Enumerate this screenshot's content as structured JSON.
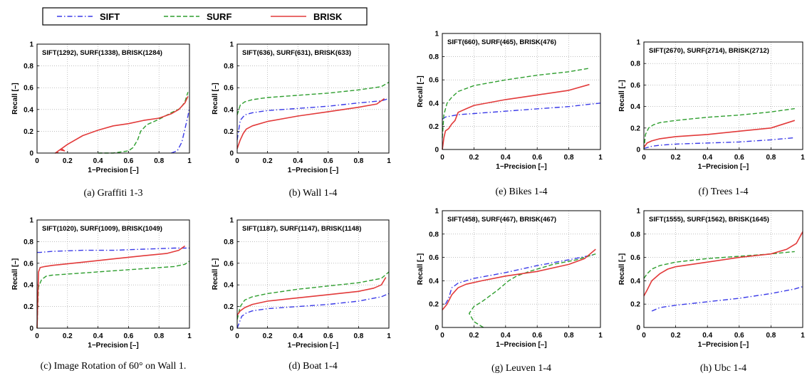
{
  "legend": [
    {
      "name": "SIFT",
      "color": "#3a3ae8",
      "dash": "dashdot"
    },
    {
      "name": "SURF",
      "color": "#2e9e2e",
      "dash": "dashed"
    },
    {
      "name": "BRISK",
      "color": "#e23a3a",
      "dash": "solid"
    }
  ],
  "chart_data": [
    {
      "type": "line",
      "caption": "(a) Graffiti 1-3",
      "annotation": "SIFT(1292), SURF(1338), BRISK(1284)",
      "xlabel": "1−Precision [–]",
      "ylabel": "Recall [–]",
      "xlim": [
        0,
        1
      ],
      "ylim": [
        0,
        1
      ],
      "grid": true,
      "xticks": [
        "0",
        "0.2",
        "0.4",
        "0.6",
        "0.8",
        "1"
      ],
      "yticks": [
        "0",
        "0.2",
        "0.4",
        "0.6",
        "0.8",
        "1"
      ],
      "series": [
        {
          "name": "SIFT",
          "x": [
            0.88,
            0.92,
            0.95,
            0.97,
            0.99,
            1.0
          ],
          "y": [
            0.0,
            0.02,
            0.1,
            0.22,
            0.34,
            0.42
          ]
        },
        {
          "name": "SURF",
          "x": [
            0.4,
            0.5,
            0.6,
            0.63,
            0.66,
            0.68,
            0.72,
            0.8,
            0.88,
            0.94,
            0.97,
            0.99
          ],
          "y": [
            0.0,
            0.0,
            0.02,
            0.05,
            0.12,
            0.2,
            0.26,
            0.31,
            0.37,
            0.41,
            0.47,
            0.56
          ]
        },
        {
          "name": "BRISK",
          "x": [
            0.14,
            0.13,
            0.16,
            0.18,
            0.15,
            0.12,
            0.2,
            0.3,
            0.4,
            0.5,
            0.6,
            0.7,
            0.8,
            0.88,
            0.93,
            0.97,
            0.99
          ],
          "y": [
            0.0,
            0.01,
            0.04,
            0.02,
            0.03,
            0.0,
            0.08,
            0.16,
            0.21,
            0.25,
            0.27,
            0.3,
            0.32,
            0.36,
            0.4,
            0.46,
            0.52
          ]
        }
      ]
    },
    {
      "type": "line",
      "caption": "(b) Wall 1-4",
      "annotation": "SIFT(636), SURF(631), BRISK(633)",
      "xlabel": "1−Precision [–]",
      "ylabel": "Recall [–]",
      "xlim": [
        0,
        1
      ],
      "ylim": [
        0,
        1
      ],
      "grid": true,
      "xticks": [
        "0",
        "0.2",
        "0.4",
        "0.6",
        "0.8",
        "1"
      ],
      "yticks": [
        "0",
        "0.2",
        "0.4",
        "0.6",
        "0.8",
        "1"
      ],
      "series": [
        {
          "name": "SIFT",
          "x": [
            0.0,
            0.02,
            0.05,
            0.1,
            0.2,
            0.4,
            0.6,
            0.8,
            0.95,
            1.0
          ],
          "y": [
            0.12,
            0.3,
            0.35,
            0.37,
            0.39,
            0.41,
            0.43,
            0.46,
            0.48,
            0.5
          ]
        },
        {
          "name": "SURF",
          "x": [
            0.0,
            0.02,
            0.05,
            0.1,
            0.2,
            0.4,
            0.6,
            0.8,
            0.95,
            1.0
          ],
          "y": [
            0.35,
            0.44,
            0.47,
            0.49,
            0.51,
            0.53,
            0.55,
            0.58,
            0.61,
            0.65
          ]
        },
        {
          "name": "BRISK",
          "x": [
            0.0,
            0.01,
            0.02,
            0.04,
            0.06,
            0.1,
            0.2,
            0.4,
            0.6,
            0.8,
            0.92,
            0.97
          ],
          "y": [
            0.04,
            0.08,
            0.12,
            0.18,
            0.22,
            0.25,
            0.29,
            0.34,
            0.38,
            0.42,
            0.45,
            0.5
          ]
        }
      ]
    },
    {
      "type": "line",
      "caption": "(c) Image Rotation of 60° on Wall 1.",
      "annotation": "SIFT(1020), SURF(1009), BRISK(1049)",
      "xlabel": "1−Precision [–]",
      "ylabel": "Recall [–]",
      "xlim": [
        0,
        1
      ],
      "ylim": [
        0,
        1
      ],
      "grid": true,
      "xticks": [
        "0",
        "0.2",
        "0.4",
        "0.6",
        "0.8",
        "1"
      ],
      "yticks": [
        "0",
        "0.2",
        "0.4",
        "0.6",
        "0.8",
        "1"
      ],
      "series": [
        {
          "name": "SIFT",
          "x": [
            0.0,
            0.02,
            0.1,
            0.3,
            0.5,
            0.7,
            0.9,
            0.95,
            1.0
          ],
          "y": [
            0.7,
            0.7,
            0.71,
            0.72,
            0.72,
            0.73,
            0.74,
            0.74,
            0.74
          ]
        },
        {
          "name": "SURF",
          "x": [
            0.0,
            0.01,
            0.03,
            0.06,
            0.1,
            0.3,
            0.5,
            0.7,
            0.9,
            0.97,
            1.0
          ],
          "y": [
            0.0,
            0.38,
            0.45,
            0.48,
            0.49,
            0.51,
            0.53,
            0.55,
            0.57,
            0.59,
            0.62
          ]
        },
        {
          "name": "BRISK",
          "x": [
            0.0,
            0.01,
            0.02,
            0.05,
            0.1,
            0.3,
            0.5,
            0.7,
            0.85,
            0.93,
            0.97
          ],
          "y": [
            0.0,
            0.52,
            0.56,
            0.57,
            0.58,
            0.61,
            0.64,
            0.67,
            0.69,
            0.72,
            0.76
          ]
        }
      ]
    },
    {
      "type": "line",
      "caption": "(d) Boat 1-4",
      "annotation": "SIFT(1187), SURF(1147), BRISK(1148)",
      "xlabel": "1−Precision [–]",
      "ylabel": "Recall [–]",
      "xlim": [
        0,
        1
      ],
      "ylim": [
        0,
        1
      ],
      "grid": true,
      "xticks": [
        "0",
        "0.2",
        "0.4",
        "0.6",
        "0.8",
        "1"
      ],
      "yticks": [
        "0",
        "0.2",
        "0.4",
        "0.6",
        "0.8",
        "1"
      ],
      "series": [
        {
          "name": "SIFT",
          "x": [
            0.0,
            0.03,
            0.06,
            0.1,
            0.2,
            0.4,
            0.6,
            0.8,
            0.95,
            1.0
          ],
          "y": [
            0.0,
            0.11,
            0.14,
            0.16,
            0.18,
            0.2,
            0.22,
            0.25,
            0.29,
            0.32
          ]
        },
        {
          "name": "SURF",
          "x": [
            0.0,
            0.02,
            0.05,
            0.1,
            0.2,
            0.4,
            0.6,
            0.8,
            0.95,
            1.0
          ],
          "y": [
            0.08,
            0.2,
            0.26,
            0.29,
            0.32,
            0.36,
            0.39,
            0.42,
            0.46,
            0.52
          ]
        },
        {
          "name": "BRISK",
          "x": [
            0.0,
            0.02,
            0.05,
            0.1,
            0.2,
            0.4,
            0.6,
            0.8,
            0.9,
            0.95,
            0.98
          ],
          "y": [
            0.12,
            0.16,
            0.19,
            0.22,
            0.25,
            0.28,
            0.31,
            0.34,
            0.37,
            0.4,
            0.47
          ]
        }
      ]
    },
    {
      "type": "line",
      "caption": "(e) Bikes 1-4",
      "annotation": "SIFT(660), SURF(465), BRISK(476)",
      "xlabel": "1−Precision [–]",
      "ylabel": "Recall [–]",
      "xlim": [
        0,
        1
      ],
      "ylim": [
        0,
        1
      ],
      "grid": true,
      "xticks": [
        "0",
        "0.2",
        "0.4",
        "0.6",
        "0.8",
        "1"
      ],
      "yticks": [
        "0",
        "0.2",
        "0.4",
        "0.6",
        "0.8",
        "1"
      ],
      "series": [
        {
          "name": "SIFT",
          "x": [
            0.0,
            0.02,
            0.1,
            0.2,
            0.4,
            0.6,
            0.8,
            1.0
          ],
          "y": [
            0.26,
            0.28,
            0.3,
            0.31,
            0.33,
            0.35,
            0.37,
            0.4
          ]
        },
        {
          "name": "SURF",
          "x": [
            0.0,
            0.01,
            0.03,
            0.06,
            0.1,
            0.2,
            0.4,
            0.6,
            0.8,
            0.93
          ],
          "y": [
            0.1,
            0.3,
            0.4,
            0.45,
            0.5,
            0.55,
            0.6,
            0.64,
            0.67,
            0.7
          ]
        },
        {
          "name": "BRISK",
          "x": [
            0.0,
            0.01,
            0.02,
            0.04,
            0.06,
            0.08,
            0.1,
            0.15,
            0.2,
            0.4,
            0.6,
            0.8,
            0.93
          ],
          "y": [
            0.0,
            0.1,
            0.16,
            0.18,
            0.22,
            0.25,
            0.32,
            0.35,
            0.38,
            0.43,
            0.47,
            0.51,
            0.56
          ]
        }
      ]
    },
    {
      "type": "line",
      "caption": "(f) Trees 1-4",
      "annotation": "SIFT(2670), SURF(2714), BRISK(2712)",
      "xlabel": "1−Precision [–]",
      "ylabel": "Recall [–]",
      "xlim": [
        0,
        1
      ],
      "ylim": [
        0,
        1
      ],
      "grid": true,
      "xticks": [
        "0",
        "0.2",
        "0.4",
        "0.6",
        "0.8",
        "1"
      ],
      "yticks": [
        "0",
        "0.2",
        "0.4",
        "0.6",
        "0.8",
        "1"
      ],
      "series": [
        {
          "name": "SIFT",
          "x": [
            0.0,
            0.05,
            0.1,
            0.2,
            0.4,
            0.6,
            0.8,
            0.95
          ],
          "y": [
            0.01,
            0.03,
            0.04,
            0.05,
            0.06,
            0.07,
            0.09,
            0.11
          ]
        },
        {
          "name": "SURF",
          "x": [
            0.0,
            0.01,
            0.03,
            0.06,
            0.1,
            0.2,
            0.4,
            0.6,
            0.8,
            0.95
          ],
          "y": [
            0.0,
            0.14,
            0.2,
            0.23,
            0.25,
            0.27,
            0.3,
            0.32,
            0.35,
            0.38
          ]
        },
        {
          "name": "BRISK",
          "x": [
            0.0,
            0.02,
            0.05,
            0.1,
            0.2,
            0.4,
            0.6,
            0.8,
            0.95
          ],
          "y": [
            0.02,
            0.06,
            0.08,
            0.1,
            0.12,
            0.14,
            0.17,
            0.2,
            0.27
          ]
        }
      ]
    },
    {
      "type": "line",
      "caption": "(g) Leuven 1-4",
      "annotation": "SIFT(458), SURF(467), BRISK(467)",
      "xlabel": "1−Precision [–]",
      "ylabel": "Recall [–]",
      "xlim": [
        0,
        1
      ],
      "ylim": [
        0,
        1
      ],
      "grid": true,
      "xticks": [
        "0",
        "0.2",
        "0.4",
        "0.6",
        "0.8",
        "1"
      ],
      "yticks": [
        "0",
        "0.2",
        "0.4",
        "0.6",
        "0.8",
        "1"
      ],
      "series": [
        {
          "name": "SIFT",
          "x": [
            0.02,
            0.04,
            0.06,
            0.08,
            0.1,
            0.2,
            0.4,
            0.6,
            0.8,
            0.95
          ],
          "y": [
            0.2,
            0.25,
            0.34,
            0.36,
            0.38,
            0.42,
            0.47,
            0.53,
            0.58,
            0.62
          ]
        },
        {
          "name": "SURF",
          "x": [
            0.26,
            0.2,
            0.17,
            0.2,
            0.25,
            0.3,
            0.35,
            0.42,
            0.47,
            0.55,
            0.7,
            0.85,
            0.97
          ],
          "y": [
            0.0,
            0.05,
            0.12,
            0.18,
            0.22,
            0.27,
            0.32,
            0.4,
            0.44,
            0.48,
            0.54,
            0.58,
            0.63
          ]
        },
        {
          "name": "BRISK",
          "x": [
            0.0,
            0.03,
            0.06,
            0.1,
            0.15,
            0.25,
            0.4,
            0.6,
            0.8,
            0.9,
            0.97
          ],
          "y": [
            0.15,
            0.2,
            0.28,
            0.34,
            0.37,
            0.4,
            0.44,
            0.48,
            0.54,
            0.59,
            0.67
          ]
        }
      ]
    },
    {
      "type": "line",
      "caption": "(h) Ubc 1-4",
      "annotation": "SIFT(1555), SURF(1562), BRISK(1645)",
      "xlabel": "1−Precision [–]",
      "ylabel": "Recall [–]",
      "xlim": [
        0,
        1
      ],
      "ylim": [
        0,
        1
      ],
      "grid": true,
      "xticks": [
        "0",
        "0.2",
        "0.4",
        "0.6",
        "0.8",
        "1"
      ],
      "yticks": [
        "0",
        "0.2",
        "0.4",
        "0.6",
        "0.8",
        "1"
      ],
      "series": [
        {
          "name": "SIFT",
          "x": [
            0.05,
            0.1,
            0.2,
            0.4,
            0.6,
            0.8,
            0.95,
            1.0
          ],
          "y": [
            0.14,
            0.17,
            0.19,
            0.22,
            0.25,
            0.29,
            0.33,
            0.35
          ]
        },
        {
          "name": "SURF",
          "x": [
            0.0,
            0.02,
            0.05,
            0.1,
            0.2,
            0.4,
            0.6,
            0.8,
            0.95
          ],
          "y": [
            0.42,
            0.46,
            0.5,
            0.53,
            0.56,
            0.59,
            0.61,
            0.63,
            0.65
          ]
        },
        {
          "name": "BRISK",
          "x": [
            0.0,
            0.02,
            0.05,
            0.1,
            0.15,
            0.2,
            0.4,
            0.6,
            0.8,
            0.9,
            0.96,
            1.0
          ],
          "y": [
            0.27,
            0.32,
            0.4,
            0.46,
            0.5,
            0.52,
            0.56,
            0.6,
            0.63,
            0.67,
            0.72,
            0.82
          ]
        }
      ]
    }
  ]
}
